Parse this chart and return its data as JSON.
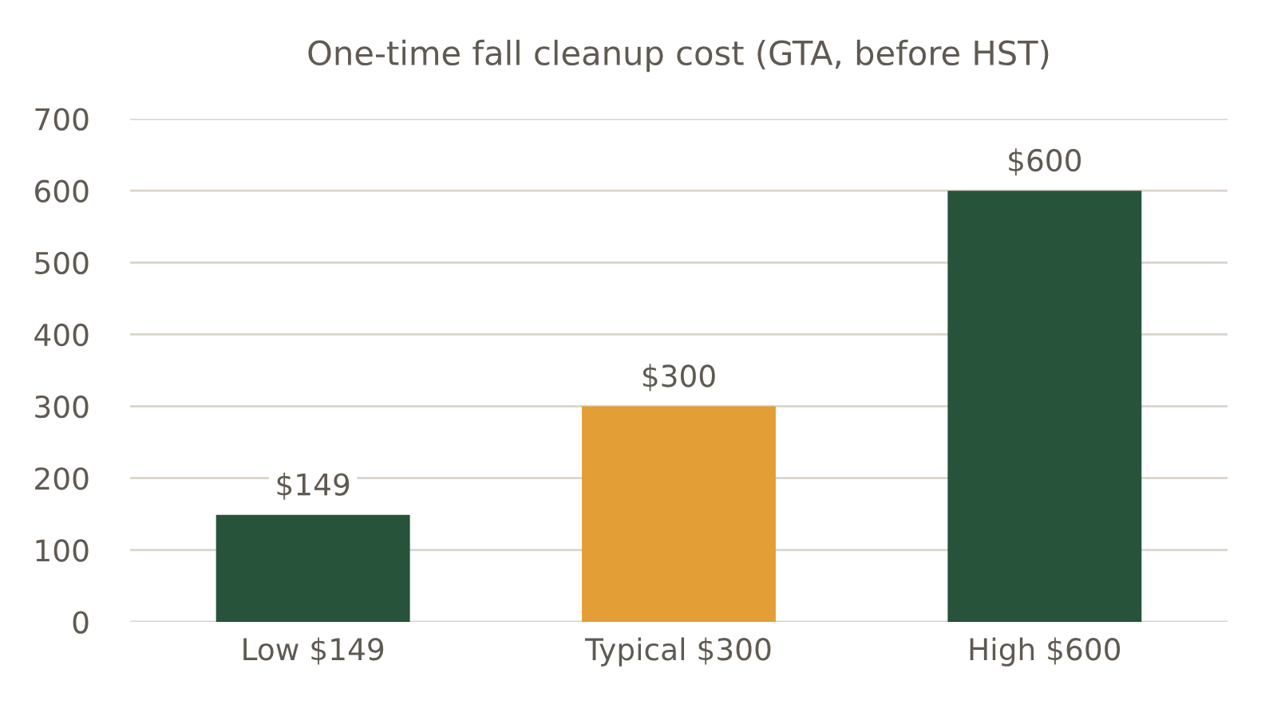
{
  "chart_data": {
    "type": "bar",
    "title": "One-time fall cleanup cost (GTA, before HST)",
    "categories": [
      "Low $149",
      "Typical $300",
      "High $600"
    ],
    "values": [
      149,
      300,
      600
    ],
    "colors": [
      "#26533a",
      "#e39e35",
      "#26533a"
    ],
    "value_labels": [
      "$149",
      "$300",
      "$600"
    ],
    "ylim": [
      0,
      700
    ],
    "yticks": [
      0,
      100,
      200,
      300,
      400,
      500,
      600,
      700
    ],
    "grid": "y",
    "legend": false
  }
}
